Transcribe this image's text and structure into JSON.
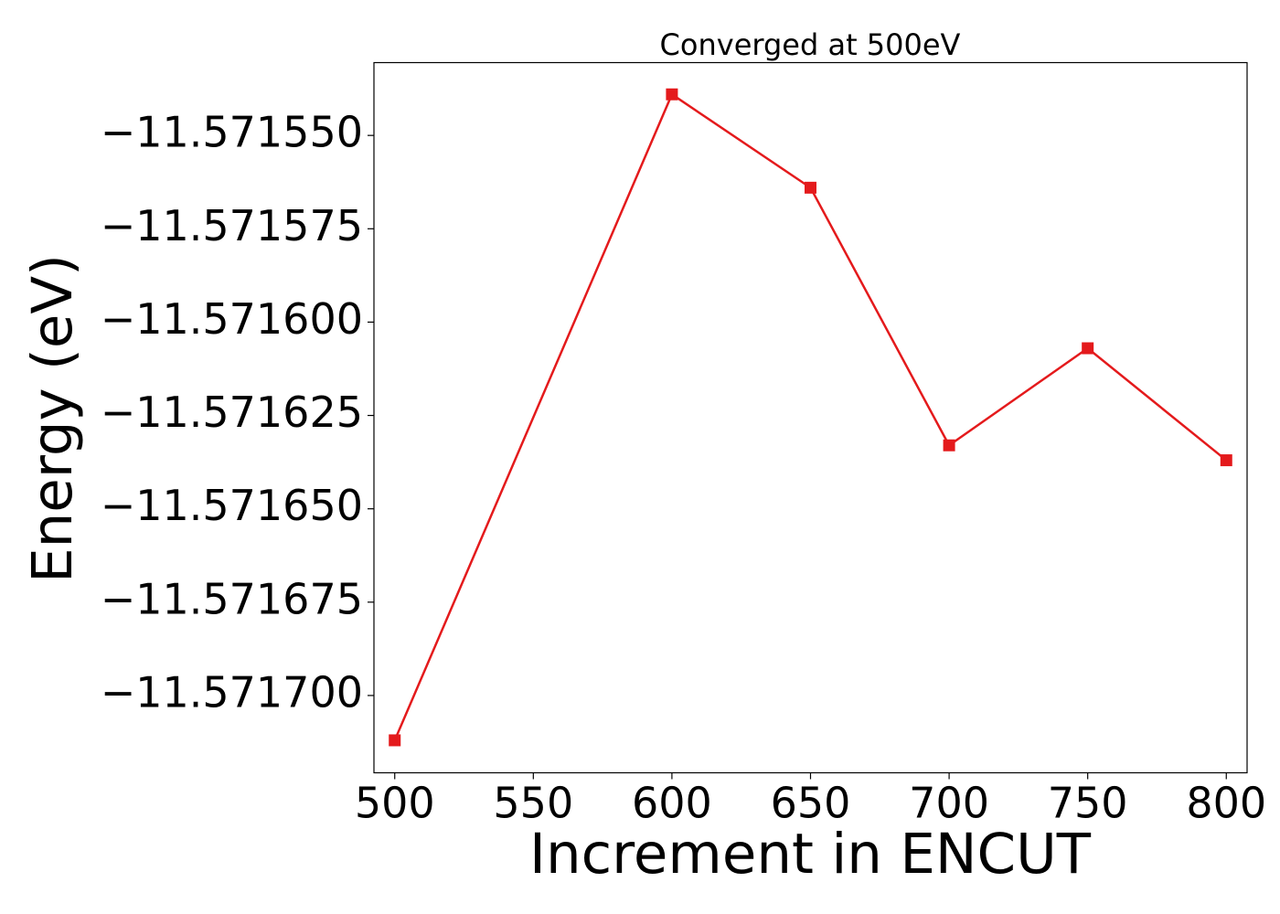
{
  "chart_data": {
    "type": "line",
    "title": "Converged at 500eV",
    "xlabel": "Increment in ENCUT",
    "ylabel": "Energy (eV)",
    "x": [
      500,
      600,
      650,
      700,
      750,
      800
    ],
    "series": [
      {
        "values": [
          -11.571712,
          -11.571539,
          -11.571564,
          -11.571633,
          -11.571607,
          -11.571637
        ],
        "color": "#e41a1c",
        "marker": "square"
      }
    ],
    "xticks": [
      500,
      550,
      600,
      650,
      700,
      750,
      800
    ],
    "xtick_labels": [
      "500",
      "550",
      "600",
      "650",
      "700",
      "750",
      "800"
    ],
    "yticks": [
      -11.5717,
      -11.571675,
      -11.57165,
      -11.571625,
      -11.5716,
      -11.571575,
      -11.57155
    ],
    "ytick_labels": [
      "−11.571700",
      "−11.571675",
      "−11.571650",
      "−11.571625",
      "−11.571600",
      "−11.571575",
      "−11.571550"
    ],
    "xlim": [
      492.5,
      807.5
    ],
    "ylim": [
      -11.5717207,
      -11.5715305
    ],
    "grid": false,
    "legend": "none"
  }
}
